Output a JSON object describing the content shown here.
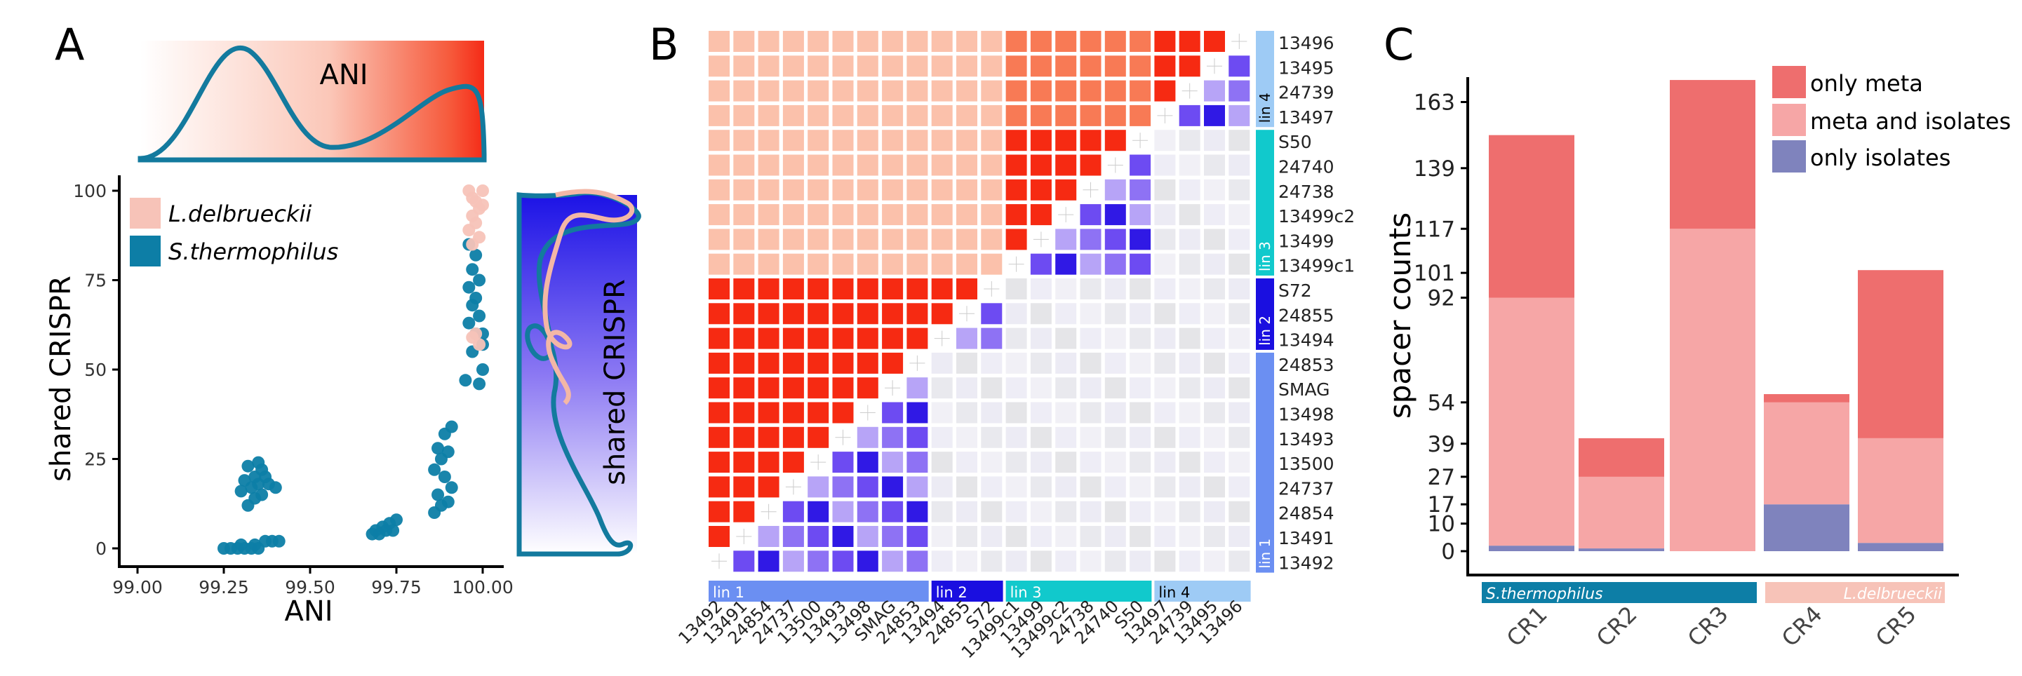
{
  "panels": {
    "A": {
      "letter": "A",
      "top_density_label": "ANI",
      "right_density_label": "shared CRISPR",
      "xlabel": "ANI",
      "ylabel": "shared CRISPR",
      "xticks": [
        "99.00",
        "99.25",
        "99.50",
        "99.75",
        "100.00"
      ],
      "yticks": [
        "0",
        "25",
        "50",
        "75",
        "100"
      ],
      "legend": [
        {
          "label": "L.delbrueckii",
          "color": "#f7c3b8"
        },
        {
          "label": "S.thermophilus",
          "color": "#0d7ea6"
        }
      ]
    },
    "B": {
      "letter": "B",
      "rows": [
        "13496",
        "13495",
        "24739",
        "13497",
        "S50",
        "24740",
        "24738",
        "13499c2",
        "13499",
        "13499c1",
        "S72",
        "24855",
        "13494",
        "24853",
        "SMAG",
        "13498",
        "13493",
        "13500",
        "24737",
        "24854",
        "13491",
        "13492"
      ],
      "cols": [
        "13492",
        "13491",
        "24854",
        "24737",
        "13500",
        "13493",
        "13498",
        "SMAG",
        "24853",
        "13494",
        "24855",
        "S72",
        "13499c1",
        "13499",
        "13499c2",
        "24738",
        "24740",
        "S50",
        "13497",
        "24739",
        "13495",
        "13496"
      ],
      "lineages": [
        {
          "label": "lin 4",
          "color": "#9ecbf5",
          "size": 4
        },
        {
          "label": "lin 3",
          "color": "#11c9cc",
          "size": 6
        },
        {
          "label": "lin 2",
          "color": "#1a0fe0",
          "size": 3
        },
        {
          "label": "lin 1",
          "color": "#6b8ff2",
          "size": 9
        }
      ]
    },
    "C": {
      "letter": "C",
      "ylabel": "spacer counts",
      "yticks": [
        "0",
        "10",
        "17",
        "27",
        "39",
        "54",
        "92",
        "101",
        "117",
        "139",
        "163"
      ],
      "legend": [
        {
          "label": "only meta",
          "color": "#ee6e6e"
        },
        {
          "label": "meta and isolates",
          "color": "#f6a6a6"
        },
        {
          "label": "only isolates",
          "color": "#7f83bd"
        }
      ],
      "species_bars": [
        {
          "label": "S.thermophilus",
          "color": "#0d7ea6"
        },
        {
          "label": "L.delbrueckii",
          "color": "#f7c3b8"
        }
      ]
    }
  },
  "chart_data": [
    {
      "type": "scatter",
      "title": "",
      "xlabel": "ANI",
      "ylabel": "shared CRISPR",
      "xlim": [
        99.0,
        100.0
      ],
      "ylim": [
        0,
        100
      ],
      "series": [
        {
          "name": "S.thermophilus",
          "color": "#0d7ea6",
          "points": [
            [
              99.25,
              0
            ],
            [
              99.27,
              0
            ],
            [
              99.29,
              0
            ],
            [
              99.31,
              0
            ],
            [
              99.33,
              0
            ],
            [
              99.35,
              0
            ],
            [
              99.3,
              1
            ],
            [
              99.34,
              1
            ],
            [
              99.37,
              2
            ],
            [
              99.39,
              2
            ],
            [
              99.41,
              2
            ],
            [
              99.32,
              12
            ],
            [
              99.34,
              14
            ],
            [
              99.36,
              15
            ],
            [
              99.33,
              17
            ],
            [
              99.35,
              18
            ],
            [
              99.38,
              18
            ],
            [
              99.31,
              19
            ],
            [
              99.34,
              20
            ],
            [
              99.36,
              22
            ],
            [
              99.32,
              23
            ],
            [
              99.35,
              24
            ],
            [
              99.37,
              20
            ],
            [
              99.4,
              17
            ],
            [
              99.3,
              16
            ],
            [
              99.68,
              4
            ],
            [
              99.7,
              4
            ],
            [
              99.72,
              5
            ],
            [
              99.74,
              5
            ],
            [
              99.71,
              6
            ],
            [
              99.73,
              7
            ],
            [
              99.75,
              8
            ],
            [
              99.69,
              5
            ],
            [
              99.86,
              10
            ],
            [
              99.88,
              12
            ],
            [
              99.9,
              13
            ],
            [
              99.87,
              15
            ],
            [
              99.91,
              17
            ],
            [
              99.89,
              20
            ],
            [
              99.86,
              22
            ],
            [
              99.88,
              25
            ],
            [
              99.9,
              27
            ],
            [
              99.87,
              28
            ],
            [
              99.89,
              32
            ],
            [
              99.91,
              34
            ],
            [
              99.95,
              47
            ],
            [
              99.97,
              55
            ],
            [
              99.98,
              60
            ],
            [
              99.96,
              63
            ],
            [
              99.99,
              65
            ],
            [
              99.97,
              68
            ],
            [
              99.98,
              70
            ],
            [
              99.96,
              73
            ],
            [
              99.99,
              75
            ],
            [
              99.97,
              78
            ],
            [
              99.98,
              82
            ],
            [
              99.96,
              85
            ],
            [
              100.0,
              60
            ],
            [
              100.0,
              50
            ],
            [
              100.0,
              57
            ],
            [
              99.99,
              46
            ]
          ]
        },
        {
          "name": "L.delbrueckii",
          "color": "#f7c3b8",
          "points": [
            [
              99.96,
              100
            ],
            [
              99.97,
              98
            ],
            [
              99.98,
              97
            ],
            [
              99.99,
              95
            ],
            [
              99.97,
              93
            ],
            [
              99.98,
              91
            ],
            [
              99.96,
              89
            ],
            [
              99.99,
              87
            ],
            [
              99.97,
              85
            ],
            [
              100.0,
              100
            ],
            [
              100.0,
              96
            ],
            [
              99.98,
              60
            ],
            [
              99.99,
              57
            ],
            [
              99.97,
              59
            ]
          ]
        }
      ]
    },
    {
      "type": "heatmap",
      "title": "",
      "rows": [
        "13496",
        "13495",
        "24739",
        "13497",
        "S50",
        "24740",
        "24738",
        "13499c2",
        "13499",
        "13499c1",
        "S72",
        "24855",
        "13494",
        "24853",
        "SMAG",
        "13498",
        "13493",
        "13500",
        "24737",
        "24854",
        "13491",
        "13492"
      ],
      "cols": [
        "13492",
        "13491",
        "24854",
        "24737",
        "13500",
        "13493",
        "13498",
        "SMAG",
        "24853",
        "13494",
        "24855",
        "S72",
        "13499c1",
        "13499",
        "13499c2",
        "24738",
        "24740",
        "S50",
        "13497",
        "24739",
        "13495",
        "13496"
      ],
      "upper_triangle": "ANI (red)",
      "lower_triangle": "shared CRISPR (blue)"
    },
    {
      "type": "bar",
      "title": "",
      "xlabel": "",
      "ylabel": "spacer counts",
      "categories": [
        "CR1",
        "CR2",
        "CR3",
        "CR4",
        "CR5"
      ],
      "ylim": [
        0,
        170
      ],
      "series": [
        {
          "name": "only isolates",
          "color": "#7f83bd",
          "values": [
            2,
            1,
            0,
            17,
            3
          ]
        },
        {
          "name": "meta and isolates",
          "color": "#f6a6a6",
          "values": [
            90,
            26,
            117,
            37,
            38
          ]
        },
        {
          "name": "only meta",
          "color": "#ee6e6e",
          "values": [
            59,
            14,
            54,
            3,
            61
          ]
        }
      ]
    }
  ]
}
